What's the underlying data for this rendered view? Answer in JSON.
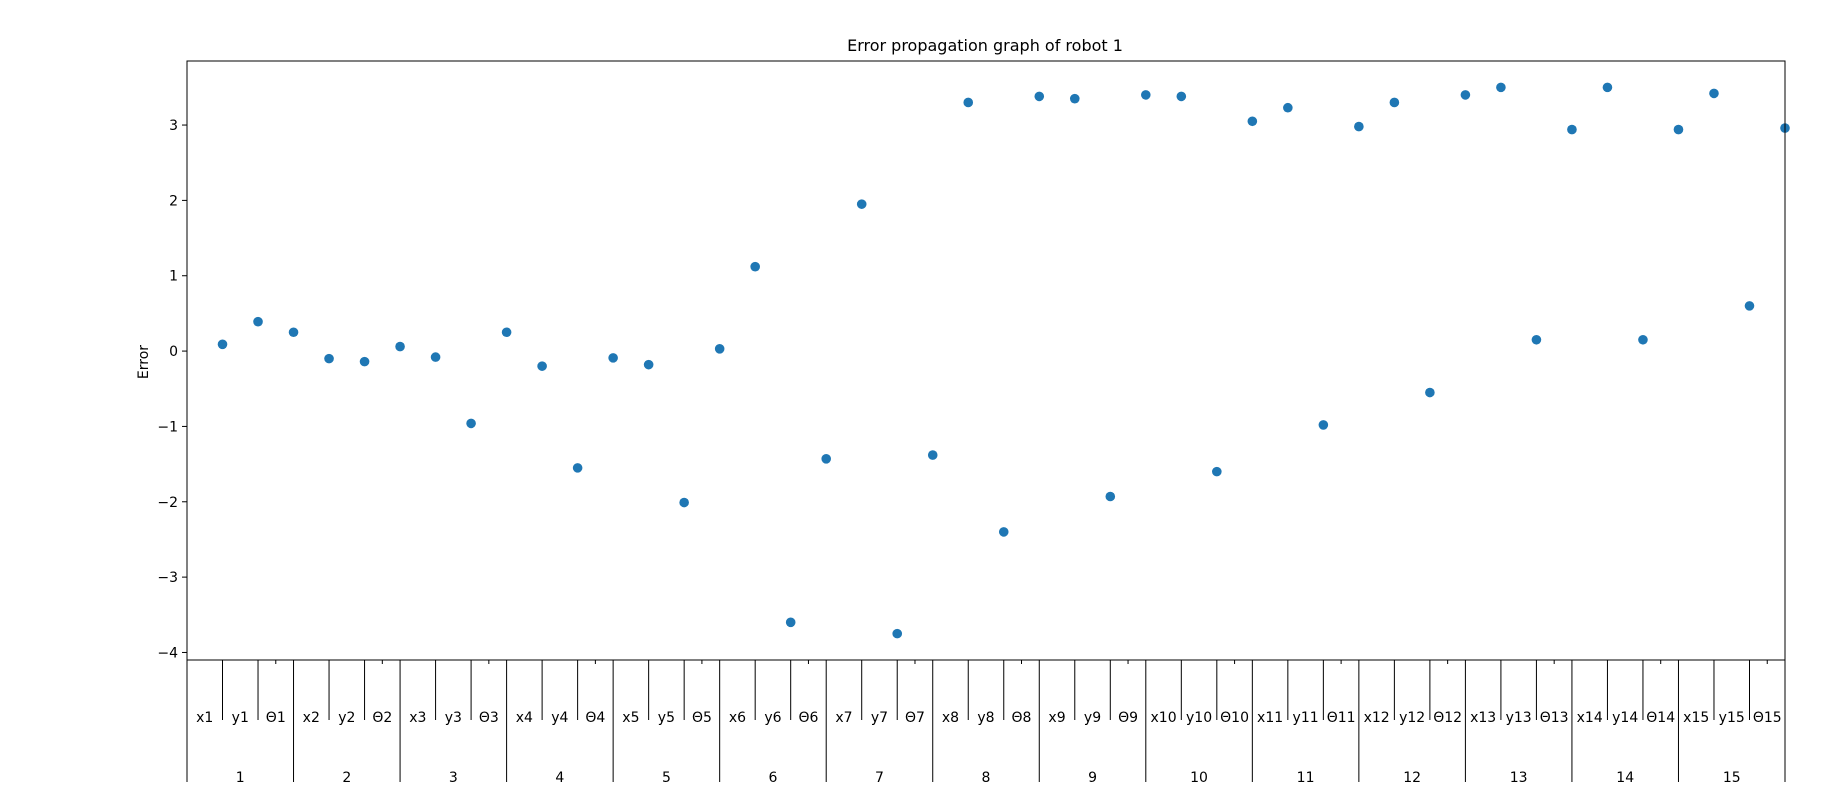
{
  "chart_data": {
    "type": "scatter",
    "title": "Error propagation graph of robot 1",
    "xlabel": "",
    "ylabel": "Error",
    "ylim": [
      -4.1,
      3.85
    ],
    "yticks": [
      {
        "value": -4,
        "label": "−4"
      },
      {
        "value": -3,
        "label": "−3"
      },
      {
        "value": -2,
        "label": "−2"
      },
      {
        "value": -1,
        "label": "−1"
      },
      {
        "value": 0,
        "label": "0"
      },
      {
        "value": 1,
        "label": "1"
      },
      {
        "value": 2,
        "label": "2"
      },
      {
        "value": 3,
        "label": "3"
      }
    ],
    "grid": false,
    "point_color": "#1f77b4",
    "categories": [
      "x1",
      "y1",
      "Θ1",
      "x2",
      "y2",
      "Θ2",
      "x3",
      "y3",
      "Θ3",
      "x4",
      "y4",
      "Θ4",
      "x5",
      "y5",
      "Θ5",
      "x6",
      "y6",
      "Θ6",
      "x7",
      "y7",
      "Θ7",
      "x8",
      "y8",
      "Θ8",
      "x9",
      "y9",
      "Θ9",
      "x10",
      "y10",
      "Θ10",
      "x11",
      "y11",
      "Θ11",
      "x12",
      "y12",
      "Θ12",
      "x13",
      "y13",
      "Θ13",
      "x14",
      "y14",
      "Θ14",
      "x15",
      "y15",
      "Θ15"
    ],
    "groups": [
      "1",
      "2",
      "3",
      "4",
      "5",
      "6",
      "7",
      "8",
      "9",
      "10",
      "11",
      "12",
      "13",
      "14",
      "15"
    ],
    "values": [
      0.09,
      0.39,
      0.25,
      -0.1,
      -0.14,
      0.06,
      -0.08,
      -0.96,
      0.25,
      -0.2,
      -1.55,
      -0.09,
      -0.18,
      -2.01,
      0.03,
      1.12,
      -3.6,
      -1.43,
      1.95,
      -3.75,
      -1.38,
      3.3,
      -2.4,
      3.38,
      3.35,
      -1.93,
      3.4,
      3.38,
      -1.6,
      3.05,
      3.23,
      -0.98,
      2.98,
      3.3,
      -0.55,
      3.4,
      3.5,
      0.15,
      2.94,
      3.5,
      0.15,
      2.94,
      3.42,
      0.6,
      2.96
    ]
  }
}
